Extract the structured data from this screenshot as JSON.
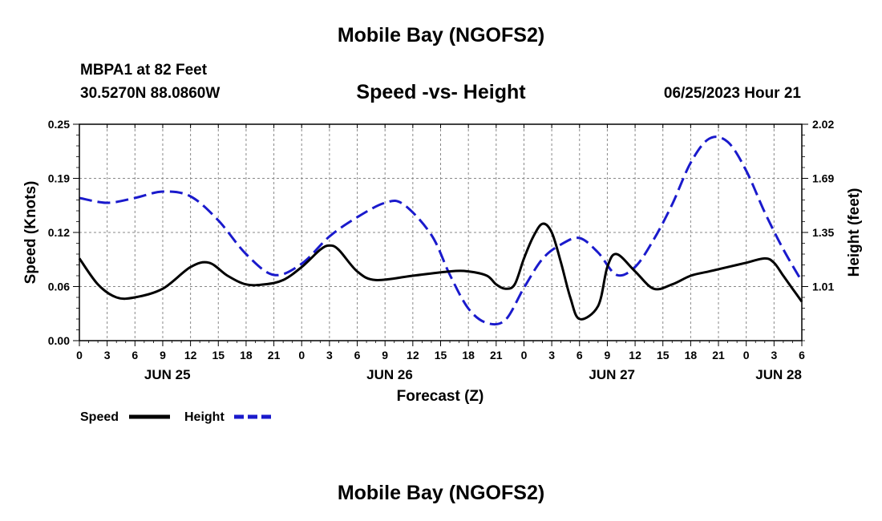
{
  "header": {
    "title": "Mobile Bay (NGOFS2)",
    "station": "MBPA1 at 82 Feet",
    "coords": "30.5270N  88.0860W",
    "subtitle": "Speed -vs- Height",
    "datetime": "06/25/2023 Hour 21"
  },
  "footer": {
    "title": "Mobile Bay (NGOFS2)"
  },
  "colors": {
    "speed": "#000000",
    "height": "#1a1acc",
    "grid": "#888888"
  },
  "chart_data": {
    "type": "line",
    "title": "Speed -vs- Height",
    "xlabel": "Forecast (Z)",
    "ylabel": "Speed (Knots)",
    "y2label": "Height (feet)",
    "xlim": [
      0,
      78
    ],
    "ylim": [
      0,
      0.25
    ],
    "y2lim": [
      0.67,
      2.02
    ],
    "yticks": [
      "0.00",
      "0.06",
      "0.12",
      "0.19",
      "0.25"
    ],
    "y2ticks": [
      "1.01",
      "1.35",
      "1.69",
      "2.02"
    ],
    "xtick_labels": [
      "0",
      "3",
      "6",
      "9",
      "12",
      "15",
      "18",
      "21",
      "0",
      "3",
      "6",
      "9",
      "12",
      "15",
      "18",
      "21",
      "0",
      "3",
      "6",
      "9",
      "12",
      "15",
      "18",
      "21",
      "0",
      "3",
      "6"
    ],
    "date_labels": [
      {
        "label": "JUN 25",
        "hour": 9.5
      },
      {
        "label": "JUN 26",
        "hour": 33.5
      },
      {
        "label": "JUN 27",
        "hour": 57.5
      },
      {
        "label": "JUN 28",
        "hour": 75.5
      }
    ],
    "grid": true,
    "legend": "bottom-left",
    "series": [
      {
        "name": "Speed",
        "axis": "left",
        "style": "solid",
        "x": [
          0,
          2,
          4,
          6,
          9,
          12,
          14,
          16,
          18,
          20,
          22,
          24,
          26,
          27,
          28,
          30,
          32,
          36,
          40,
          42,
          44,
          45,
          46,
          47,
          48,
          49,
          50,
          51,
          52,
          53,
          54,
          56,
          57,
          58,
          60,
          62,
          64,
          66,
          68,
          70,
          72,
          74,
          75,
          76,
          77,
          78
        ],
        "values": [
          0.095,
          0.065,
          0.05,
          0.05,
          0.06,
          0.085,
          0.09,
          0.075,
          0.065,
          0.065,
          0.07,
          0.085,
          0.105,
          0.11,
          0.105,
          0.08,
          0.07,
          0.075,
          0.08,
          0.08,
          0.075,
          0.065,
          0.06,
          0.065,
          0.095,
          0.12,
          0.135,
          0.125,
          0.09,
          0.05,
          0.025,
          0.04,
          0.085,
          0.1,
          0.08,
          0.06,
          0.065,
          0.075,
          0.08,
          0.085,
          0.09,
          0.095,
          0.09,
          0.075,
          0.06,
          0.045
        ]
      },
      {
        "name": "Height",
        "axis": "right",
        "style": "dashed",
        "x": [
          0,
          3,
          6,
          9,
          12,
          15,
          18,
          21,
          24,
          27,
          30,
          33,
          35,
          38,
          40,
          42,
          44,
          46,
          48,
          50,
          52,
          54,
          56,
          58,
          60,
          62,
          64,
          66,
          68,
          70,
          72,
          74,
          76,
          78
        ],
        "values": [
          1.56,
          1.53,
          1.56,
          1.6,
          1.57,
          1.42,
          1.21,
          1.08,
          1.15,
          1.32,
          1.44,
          1.53,
          1.52,
          1.33,
          1.08,
          0.87,
          0.78,
          0.8,
          1.0,
          1.18,
          1.27,
          1.31,
          1.22,
          1.08,
          1.13,
          1.3,
          1.52,
          1.78,
          1.93,
          1.91,
          1.73,
          1.47,
          1.24,
          1.04
        ]
      }
    ]
  }
}
